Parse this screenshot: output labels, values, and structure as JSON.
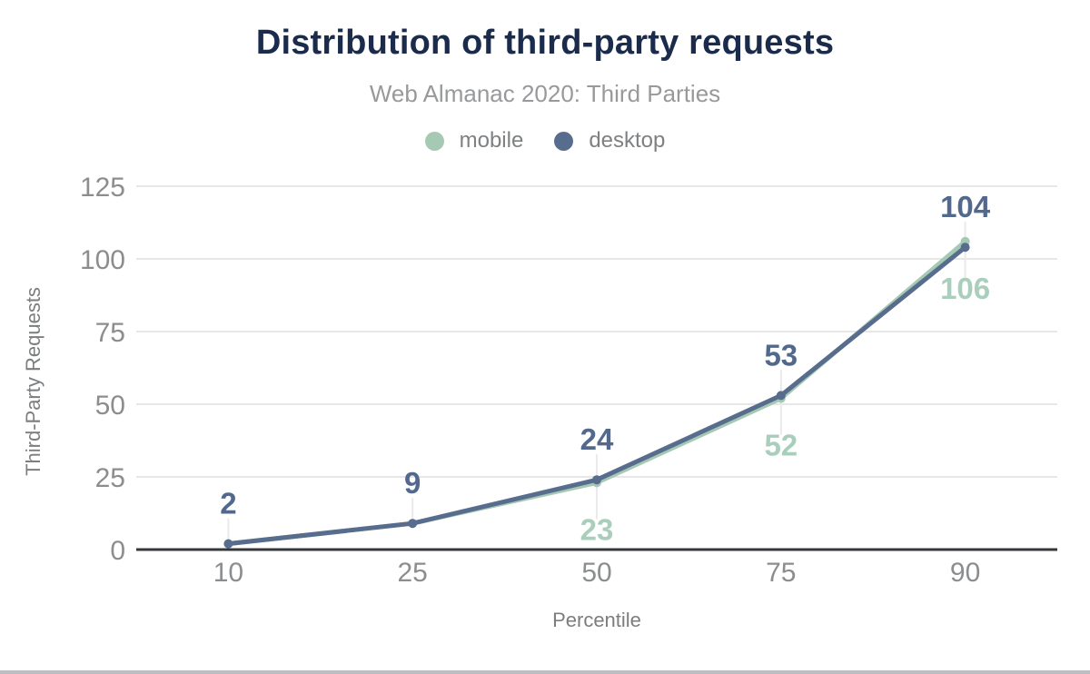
{
  "chart_data": {
    "type": "line",
    "title": "Distribution of third-party requests",
    "subtitle": "Web Almanac 2020: Third Parties",
    "xlabel": "Percentile",
    "ylabel": "Third-Party Requests",
    "categories": [
      "10",
      "25",
      "50",
      "75",
      "90"
    ],
    "y_ticks": [
      0,
      25,
      50,
      75,
      100,
      125
    ],
    "ylim": [
      0,
      125
    ],
    "grid": "horizontal",
    "legend_position": "top",
    "series": [
      {
        "name": "mobile",
        "color": "#a6c9b4",
        "label_color": "#a9cebc",
        "label_position": "below",
        "values": [
          2,
          9,
          23,
          52,
          106
        ],
        "point_labels": [
          "",
          "",
          "23",
          "52",
          "106"
        ]
      },
      {
        "name": "desktop",
        "color": "#586d8e",
        "label_color": "#53688d",
        "label_position": "above",
        "values": [
          2,
          9,
          24,
          53,
          104
        ],
        "point_labels": [
          "2",
          "9",
          "24",
          "53",
          "104"
        ]
      }
    ]
  },
  "theme": {
    "background": "#ffffff",
    "title_color": "#1a2b4c",
    "subtitle_color": "#98999b",
    "legend_text_color": "#7e8082",
    "tick_color": "#8b8d8f",
    "axis_title_color": "#7b7d7f",
    "gridline_color": "#e7e7e7",
    "axis_line_color": "#36373b",
    "leader_line_color": "#eaeaea",
    "bottom_border_color": "#bcbfc1"
  }
}
